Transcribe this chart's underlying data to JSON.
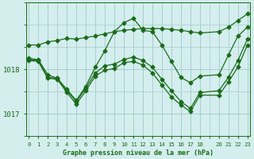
{
  "bg_color": "#d4eeee",
  "grid_color": "#aacccc",
  "line_color": "#1a6b1a",
  "title": "Graphe pression niveau de la mer (hPa)",
  "ylim": [
    1016.7,
    1019.4
  ],
  "xlim": [
    -0.3,
    23.3
  ],
  "yticks": [
    1017,
    1018
  ],
  "xticks": [
    0,
    1,
    2,
    3,
    4,
    5,
    6,
    7,
    8,
    9,
    10,
    11,
    12,
    13,
    14,
    15,
    16,
    17,
    18,
    20,
    21,
    22,
    23
  ],
  "series": [
    {
      "x": [
        0,
        1,
        2,
        3,
        4,
        5,
        6,
        7,
        8,
        9,
        10,
        11,
        12,
        13,
        14,
        15,
        16,
        17,
        18,
        20,
        21,
        22,
        23
      ],
      "y": [
        1018.55,
        1018.55,
        1018.62,
        1018.65,
        1018.7,
        1018.68,
        1018.72,
        1018.75,
        1018.8,
        1018.85,
        1018.88,
        1018.9,
        1018.92,
        1018.92,
        1018.92,
        1018.9,
        1018.88,
        1018.85,
        1018.82,
        1018.85,
        1018.95,
        1019.1,
        1019.25
      ]
    },
    {
      "x": [
        0,
        1,
        2,
        3,
        4,
        5,
        6,
        7,
        8,
        9,
        10,
        11,
        12,
        13,
        14,
        15,
        16,
        17,
        18,
        20,
        21,
        22,
        23
      ],
      "y": [
        1018.25,
        1018.22,
        1017.88,
        1017.8,
        1017.55,
        1017.3,
        1017.62,
        1018.05,
        1018.42,
        1018.85,
        1019.05,
        1019.15,
        1018.88,
        1018.85,
        1018.55,
        1018.18,
        1017.82,
        1017.7,
        1017.85,
        1017.88,
        1018.32,
        1018.75,
        1018.95
      ]
    },
    {
      "x": [
        0,
        1,
        2,
        3,
        4,
        5,
        6,
        7,
        8,
        9,
        10,
        11,
        12,
        13,
        14,
        15,
        16,
        17,
        18,
        20,
        21,
        22,
        23
      ],
      "y": [
        1018.22,
        1018.2,
        1017.82,
        1017.8,
        1017.52,
        1017.28,
        1017.58,
        1017.92,
        1018.08,
        1018.12,
        1018.22,
        1018.28,
        1018.2,
        1018.05,
        1017.78,
        1017.52,
        1017.28,
        1017.12,
        1017.48,
        1017.52,
        1017.82,
        1018.2,
        1018.68
      ]
    },
    {
      "x": [
        0,
        1,
        2,
        3,
        4,
        5,
        6,
        7,
        8,
        9,
        10,
        11,
        12,
        13,
        14,
        15,
        16,
        17,
        18,
        20,
        21,
        22,
        23
      ],
      "y": [
        1018.2,
        1018.18,
        1017.8,
        1017.78,
        1017.48,
        1017.22,
        1017.52,
        1017.85,
        1017.98,
        1018.02,
        1018.15,
        1018.18,
        1018.1,
        1017.92,
        1017.65,
        1017.38,
        1017.2,
        1017.05,
        1017.42,
        1017.42,
        1017.72,
        1018.05,
        1018.55
      ]
    }
  ]
}
